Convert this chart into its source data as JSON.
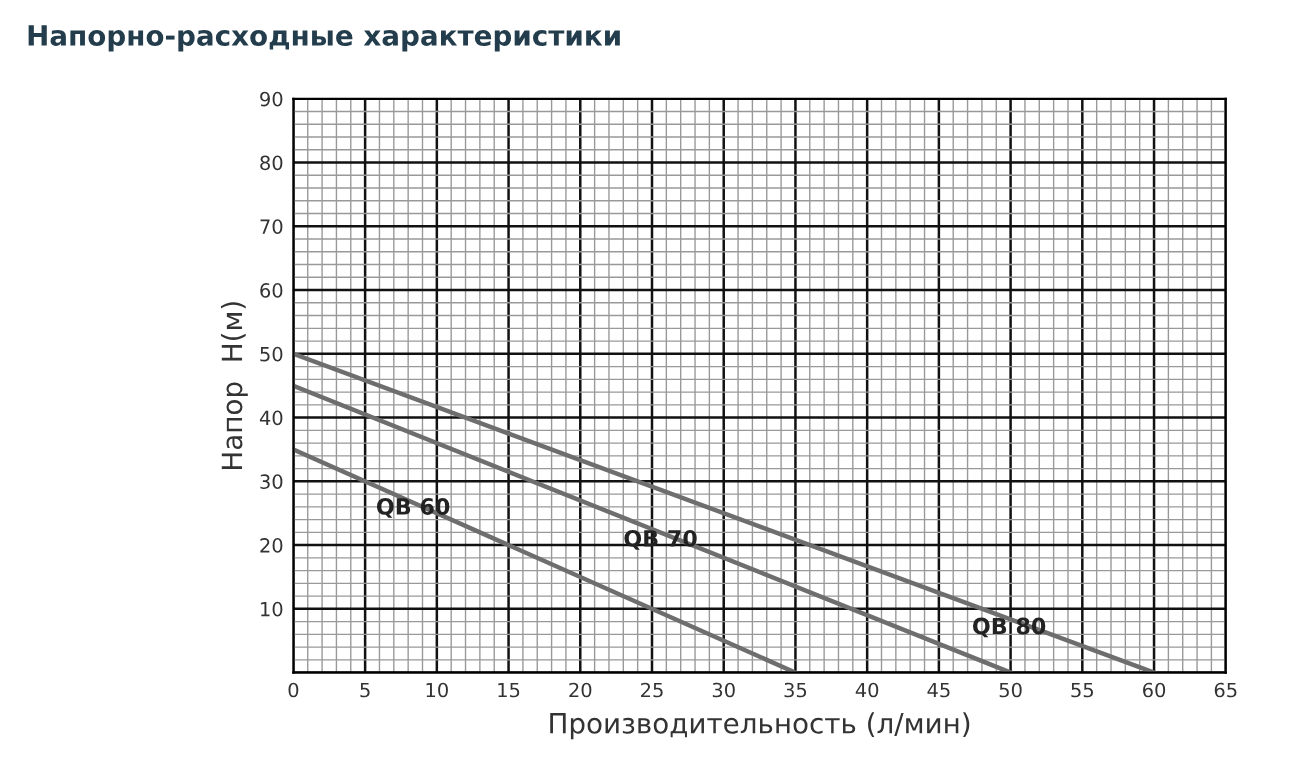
{
  "chart_data": {
    "type": "line",
    "title": "Напорно-расходные характеристики",
    "xlabel": "Производительность (л/мин)",
    "ylabel": "Напор  H(м)",
    "xlim": [
      0,
      65
    ],
    "ylim": [
      0,
      90
    ],
    "xticks": [
      0,
      5,
      10,
      15,
      20,
      25,
      30,
      35,
      40,
      45,
      50,
      55,
      60,
      65
    ],
    "yticks": [
      {
        "value": 0,
        "label": null
      },
      10,
      20,
      30,
      40,
      50,
      60,
      70,
      80,
      90
    ],
    "grid": true,
    "legend": false,
    "marker": "none",
    "line_style": "solid",
    "series": [
      {
        "name": "QB 60",
        "color": "#6e6e6e",
        "x": [
          0,
          35
        ],
        "values": [
          35,
          0
        ]
      },
      {
        "name": "QB 70",
        "color": "#6e6e6e",
        "x": [
          0,
          50
        ],
        "values": [
          45,
          0
        ]
      },
      {
        "name": "QB 80",
        "color": "#6e6e6e",
        "x": [
          0,
          60
        ],
        "values": [
          50,
          0
        ]
      }
    ]
  }
}
